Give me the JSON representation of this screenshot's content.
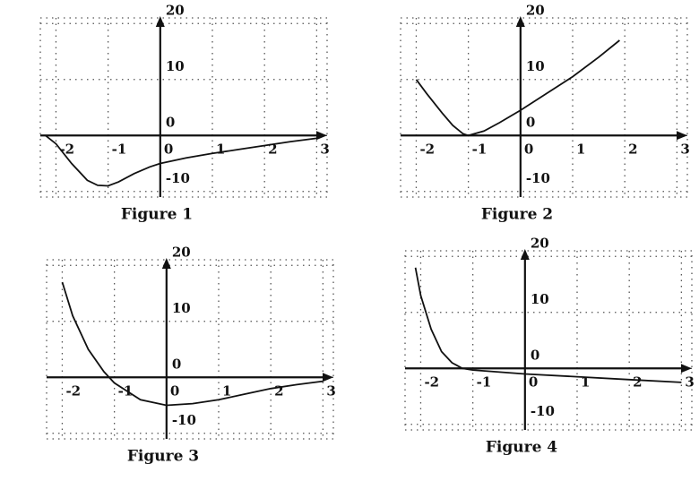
{
  "chart_data": [
    {
      "type": "line",
      "title": "Figure 1",
      "color": "#111111",
      "grid": true,
      "x": [
        -2.2,
        -2,
        -1.7,
        -1.4,
        -1.2,
        -1,
        -0.8,
        -0.5,
        -0.2,
        0,
        0.5,
        1,
        1.5,
        2,
        2.5,
        3
      ],
      "values": [
        0,
        -1.5,
        -5,
        -8,
        -8.9,
        -9,
        -8.3,
        -6.8,
        -5.6,
        -5,
        -4,
        -3.2,
        -2.5,
        -1.8,
        -1.1,
        -0.5
      ],
      "xlim": [
        -2.3,
        3.2
      ],
      "ylim": [
        -11,
        21
      ],
      "xticks": [
        -2,
        -1,
        0,
        1,
        2,
        3
      ],
      "yticks": [
        -10,
        0,
        10,
        20
      ]
    },
    {
      "type": "line",
      "title": "Figure 2",
      "color": "#111111",
      "grid": true,
      "x": [
        -2,
        -1.8,
        -1.5,
        -1.3,
        -1.1,
        -1,
        -0.7,
        -0.4,
        0,
        0.5,
        1,
        1.5,
        1.9
      ],
      "values": [
        10,
        7.5,
        4,
        1.8,
        0.3,
        0,
        0.8,
        2.3,
        4.5,
        7.5,
        10.5,
        14,
        17
      ],
      "xlim": [
        -2.3,
        3.2
      ],
      "ylim": [
        -11,
        21
      ],
      "xticks": [
        -2,
        -1,
        0,
        1,
        2,
        3
      ],
      "yticks": [
        -10,
        0,
        10,
        20
      ]
    },
    {
      "type": "line",
      "title": "Figure 3",
      "color": "#111111",
      "grid": true,
      "x": [
        -2,
        -1.8,
        -1.5,
        -1.2,
        -1,
        -0.5,
        0,
        0.5,
        1,
        1.5,
        2,
        2.5,
        3
      ],
      "values": [
        17,
        11,
        5,
        1,
        -1,
        -4,
        -5,
        -4.7,
        -4,
        -3,
        -2,
        -1.3,
        -0.7
      ],
      "xlim": [
        -2.3,
        3.2
      ],
      "ylim": [
        -11,
        21
      ],
      "xticks": [
        -2,
        -1,
        0,
        1,
        2,
        3
      ],
      "yticks": [
        -10,
        0,
        10,
        20
      ]
    },
    {
      "type": "line",
      "title": "Figure 4",
      "color": "#111111",
      "grid": true,
      "x": [
        -2.1,
        -2,
        -1.8,
        -1.6,
        -1.4,
        -1.2,
        -1,
        0,
        1,
        2,
        3
      ],
      "values": [
        18,
        13,
        7,
        3,
        1,
        0,
        -0.3,
        -1,
        -1.5,
        -2,
        -2.5
      ],
      "xlim": [
        -2.3,
        3.2
      ],
      "ylim": [
        -11,
        21
      ],
      "xticks": [
        -2,
        -1,
        0,
        1,
        2,
        3
      ],
      "yticks": [
        -10,
        0,
        10,
        20
      ]
    }
  ]
}
